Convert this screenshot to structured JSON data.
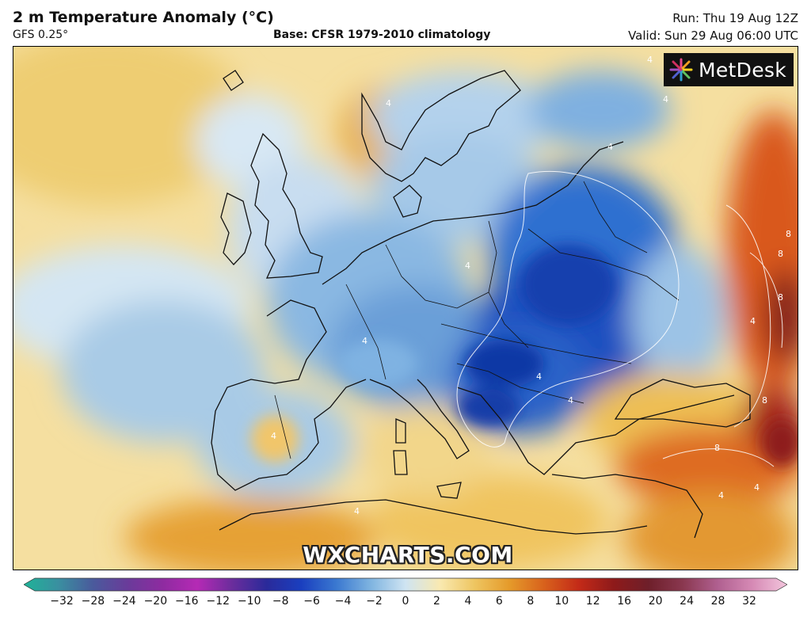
{
  "header": {
    "title": "2 m Temperature Anomaly (°C)",
    "model": "GFS 0.25°",
    "base": "Base: CFSR 1979-2010 climatology",
    "run": "Run: Thu 19 Aug 12Z",
    "valid": "Valid: Sun 29 Aug 06:00 UTC"
  },
  "logo": {
    "text": "MetDesk"
  },
  "watermark": "WXCHARTS.COM",
  "colorbar": {
    "ticks": [
      "−32",
      "−28",
      "−24",
      "−20",
      "−16",
      "−12",
      "−10",
      "−8",
      "−6",
      "−4",
      "−2",
      "0",
      "2",
      "4",
      "6",
      "8",
      "10",
      "12",
      "16",
      "20",
      "24",
      "28",
      "32"
    ],
    "colors": [
      "#1fb398",
      "#3a8fa0",
      "#4a5a9c",
      "#6a3b9a",
      "#8e2ba0",
      "#b52ab5",
      "#6b2d9c",
      "#2a2a9a",
      "#1a3fbf",
      "#3a78d0",
      "#7fb4e0",
      "#cfe4f2",
      "#f9e9b0",
      "#eec560",
      "#e59a2a",
      "#d8611c",
      "#c32a18",
      "#8e1a1a",
      "#6e1f2a",
      "#8a3850",
      "#b06090",
      "#d68ab5",
      "#f3c6dd"
    ]
  },
  "map": {
    "contour_labels": [
      "4",
      "4",
      "4",
      "4",
      "4",
      "4",
      "4",
      "4",
      "4",
      "4",
      "8",
      "8",
      "8",
      "8",
      "8",
      "4",
      "4",
      "4"
    ]
  }
}
